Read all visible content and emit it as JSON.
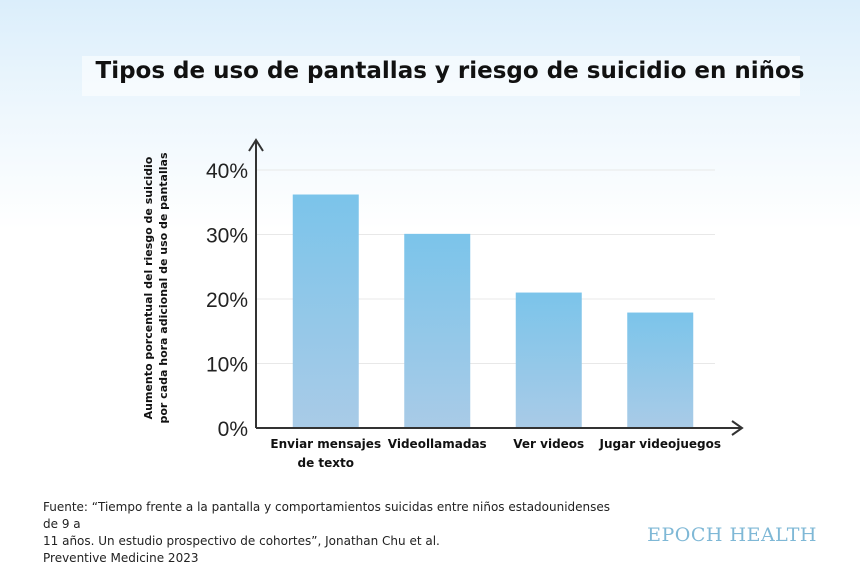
{
  "chart_data": {
    "type": "bar",
    "title": "Tipos de uso de pantallas y riesgo de suicidio en niños",
    "xlabel": "",
    "ylabel_lines": [
      "Aumento porcentual del riesgo de suicidio",
      "por cada hora adicional de uso de pantallas"
    ],
    "categories": [
      [
        "Enviar mensajes",
        "de texto"
      ],
      [
        "Videollamadas"
      ],
      [
        "Ver videos"
      ],
      [
        "Jugar videojuegos"
      ]
    ],
    "values": [
      36.2,
      30.1,
      21.0,
      17.9
    ],
    "ylim": [
      0,
      40
    ],
    "yticks": [
      "0%",
      "10%",
      "20%",
      "30%",
      "40%"
    ],
    "grid": true,
    "bar_color_top": "#7bc4ea",
    "bar_color_bottom": "#a9cbe7"
  },
  "source": {
    "lines": [
      "Fuente: “Tiempo frente a la pantalla y comportamientos suicidas entre niños estadounidenses de 9 a",
      "11 años. Un estudio prospectivo de cohortes”, Jonathan Chu et al.",
      "Preventive Medicine 2023"
    ]
  },
  "brand": "EPOCH HEALTH"
}
